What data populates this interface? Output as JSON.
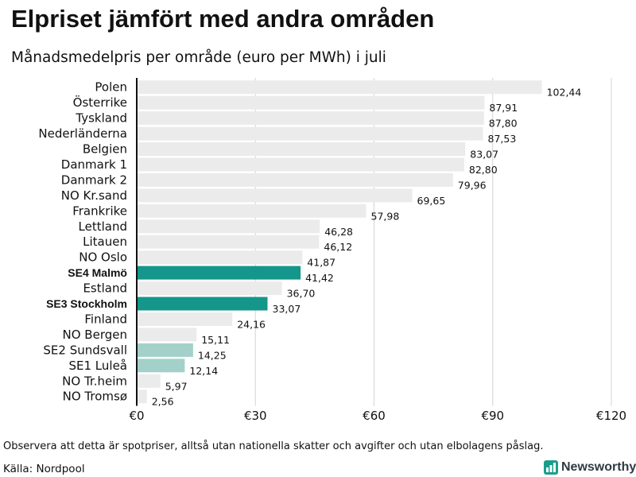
{
  "chart_data": {
    "type": "bar",
    "orientation": "horizontal",
    "title": "Elpriset jämfört med andra områden",
    "subtitle": "Månadsmedelpris per område (euro per MWh) i juli",
    "xlabel": "",
    "ylabel": "",
    "xlim": [
      0,
      120
    ],
    "xticks": [
      0,
      30,
      60,
      90,
      120
    ],
    "xtick_labels": [
      "€0",
      "€30",
      "€60",
      "€90",
      "€120"
    ],
    "grid": true,
    "categories": [
      "Polen",
      "Österrike",
      "Tyskland",
      "Nederländerna",
      "Belgien",
      "Danmark  1",
      "Danmark  2",
      "NO Kr.sand",
      "Frankrike",
      "Lettland",
      "Litauen",
      "NO Oslo",
      "SE4 Malmö",
      "Estland",
      "SE3 Stockholm",
      "Finland",
      "NO Bergen",
      "SE2  Sundsvall",
      "SE1  Luleå",
      "NO Tr.heim",
      "NO Tromsø"
    ],
    "values": [
      102.44,
      87.91,
      87.8,
      87.53,
      83.07,
      82.8,
      79.96,
      69.65,
      57.98,
      46.28,
      46.12,
      41.87,
      41.42,
      36.7,
      33.07,
      24.16,
      15.11,
      14.25,
      12.14,
      5.97,
      2.56
    ],
    "value_labels": [
      "102,44",
      "87,91",
      "87,80",
      "87,53",
      "83,07",
      "82,80",
      "79,96",
      "69,65",
      "57,98",
      "46,28",
      "46,12",
      "41,87",
      "41,42",
      "36,70",
      "33,07",
      "24,16",
      "15,11",
      "14,25",
      "12,14",
      "5,97",
      "2,56"
    ],
    "highlight": [
      "none",
      "none",
      "none",
      "none",
      "none",
      "none",
      "none",
      "none",
      "none",
      "none",
      "none",
      "none",
      "strong",
      "none",
      "strong",
      "none",
      "none",
      "light",
      "light",
      "none",
      "none"
    ],
    "bold_labels": [
      "SE4 Malmö",
      "SE3 Stockholm"
    ],
    "colors": {
      "default": "#ebebeb",
      "strong": "#14968a",
      "light": "#a3d1ca",
      "axis": "#111111",
      "grid": "#d4d4d4"
    }
  },
  "footnote": "Observera att detta är spotpriser, alltså utan nationella skatter och avgifter och utan elbolagens påslag.",
  "source": "Källa: Nordpool",
  "brand": {
    "name": "Newsworthy",
    "icon": "chart-logo-icon",
    "color": "#1a9e8c"
  }
}
